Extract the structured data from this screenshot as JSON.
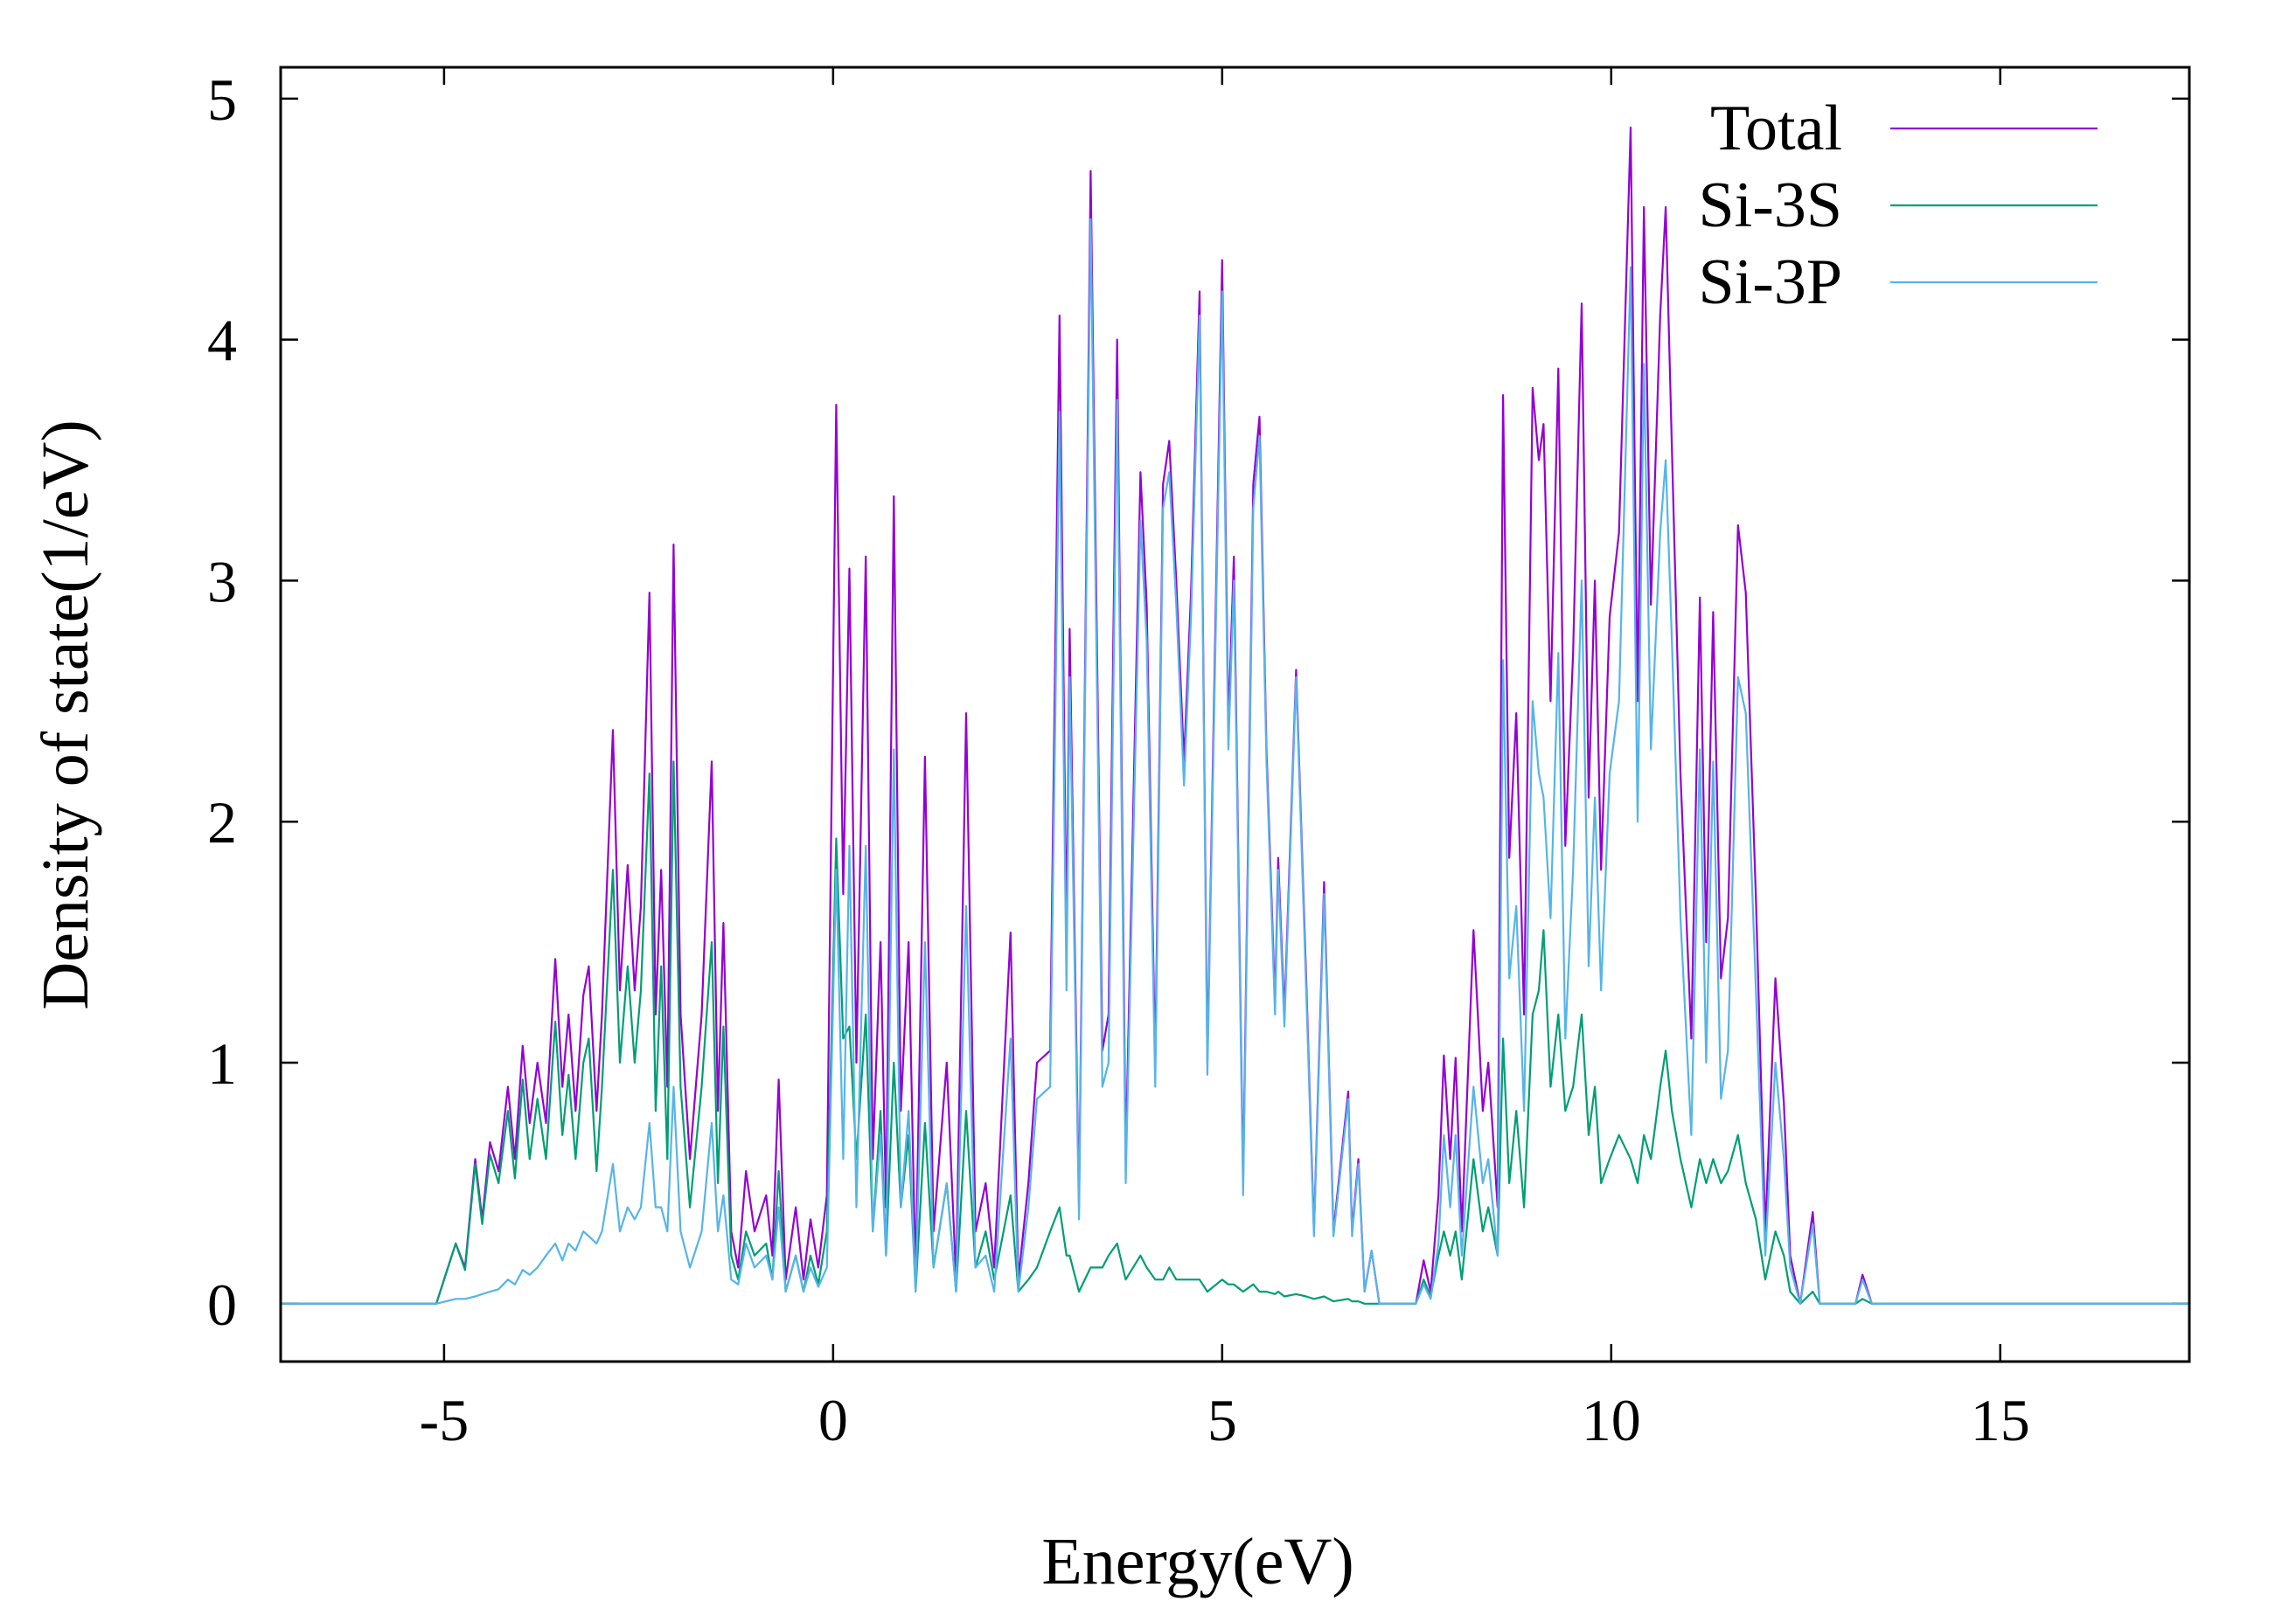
{
  "chart_data": {
    "type": "line",
    "xlabel": "Energy(eV)",
    "ylabel": "Density of state(1/eV)",
    "xlim": [
      -7.1,
      17.43
    ],
    "ylim": [
      -0.24,
      5.13
    ],
    "xticks": [
      -5,
      0,
      5,
      10,
      15
    ],
    "yticks": [
      0,
      1,
      2,
      3,
      4,
      5
    ],
    "legend": "top-right",
    "x": [
      -7.1,
      -5.1,
      -4.85,
      -4.73,
      -4.6,
      -4.51,
      -4.41,
      -4.3,
      -4.18,
      -4.09,
      -3.99,
      -3.9,
      -3.8,
      -3.69,
      -3.57,
      -3.48,
      -3.4,
      -3.31,
      -3.21,
      -3.14,
      -3.04,
      -2.97,
      -2.83,
      -2.74,
      -2.64,
      -2.55,
      -2.47,
      -2.36,
      -2.28,
      -2.21,
      -2.13,
      -2.05,
      -1.96,
      -1.84,
      -1.69,
      -1.56,
      -1.48,
      -1.41,
      -1.31,
      -1.22,
      -1.12,
      -1.01,
      -0.86,
      -0.78,
      -0.7,
      -0.61,
      -0.48,
      -0.38,
      -0.29,
      -0.19,
      -0.08,
      0.04,
      0.13,
      0.21,
      0.3,
      0.42,
      0.51,
      0.61,
      0.68,
      0.78,
      0.87,
      0.97,
      1.06,
      1.18,
      1.29,
      1.46,
      1.58,
      1.71,
      1.83,
      1.96,
      2.07,
      2.28,
      2.38,
      2.51,
      2.62,
      2.79,
      2.91,
      3.0,
      3.04,
      3.16,
      3.31,
      3.46,
      3.54,
      3.65,
      3.76,
      3.95,
      4.03,
      4.14,
      4.24,
      4.32,
      4.41,
      4.51,
      4.6,
      4.71,
      4.81,
      5.0,
      5.08,
      5.15,
      5.27,
      5.4,
      5.48,
      5.57,
      5.68,
      5.72,
      5.8,
      5.95,
      6.08,
      6.18,
      6.31,
      6.43,
      6.62,
      6.67,
      6.75,
      6.83,
      6.92,
      7.02,
      7.49,
      7.59,
      7.68,
      7.78,
      7.85,
      7.93,
      8.0,
      8.08,
      8.23,
      8.35,
      8.42,
      8.54,
      8.61,
      8.69,
      8.78,
      8.88,
      8.99,
      9.07,
      9.13,
      9.22,
      9.32,
      9.41,
      9.51,
      9.62,
      9.71,
      9.79,
      9.87,
      9.98,
      10.1,
      10.25,
      10.34,
      10.42,
      10.51,
      10.63,
      10.7,
      10.78,
      10.89,
      11.03,
      11.14,
      11.22,
      11.31,
      11.41,
      11.5,
      11.63,
      11.73,
      11.86,
      11.98,
      12.11,
      12.22,
      12.3,
      12.43,
      12.59,
      12.68,
      13.14,
      13.23,
      13.35,
      17.43
    ],
    "series": [
      {
        "name": "Total",
        "color": "#9400d3",
        "values": [
          0,
          0,
          0.25,
          0.15,
          0.6,
          0.35,
          0.67,
          0.55,
          0.9,
          0.6,
          1.07,
          0.75,
          1.0,
          0.75,
          1.43,
          0.9,
          1.2,
          0.8,
          1.28,
          1.4,
          0.8,
          1.2,
          2.38,
          1.3,
          1.82,
          1.3,
          1.65,
          2.95,
          1.2,
          1.8,
          0.9,
          3.15,
          1.2,
          0.6,
          1.2,
          2.25,
          0.8,
          1.58,
          0.3,
          0.15,
          0.55,
          0.3,
          0.45,
          0.2,
          0.93,
          0.1,
          0.4,
          0.1,
          0.35,
          0.15,
          0.45,
          3.73,
          1.7,
          3.05,
          1.0,
          3.1,
          0.6,
          1.5,
          0.4,
          3.35,
          0.8,
          1.5,
          0.1,
          2.27,
          0.3,
          1.0,
          0.1,
          2.45,
          0.3,
          0.5,
          0.15,
          1.54,
          0.1,
          0.5,
          1.0,
          1.05,
          4.1,
          1.5,
          2.8,
          0.4,
          4.7,
          1.05,
          1.2,
          4.0,
          0.6,
          3.45,
          2.9,
          1.0,
          3.4,
          3.58,
          3.0,
          2.25,
          2.95,
          4.2,
          1.0,
          4.33,
          2.4,
          3.1,
          0.5,
          3.4,
          3.68,
          2.3,
          1.25,
          1.85,
          1.2,
          2.63,
          1.35,
          0.3,
          1.75,
          0.3,
          0.88,
          0.3,
          0.6,
          0.05,
          0.22,
          0,
          0,
          0.18,
          0.05,
          0.45,
          1.03,
          0.6,
          1.02,
          0.3,
          1.55,
          0.8,
          1.0,
          0.4,
          3.77,
          1.85,
          2.45,
          1.2,
          3.8,
          3.5,
          3.65,
          2.5,
          3.88,
          1.9,
          2.7,
          4.15,
          2.1,
          3.0,
          1.8,
          2.85,
          3.2,
          4.88,
          2.5,
          4.55,
          2.9,
          4.1,
          4.55,
          3.55,
          2.2,
          1.1,
          2.93,
          1.5,
          2.87,
          1.35,
          1.6,
          3.23,
          2.95,
          1.68,
          0.3,
          1.35,
          0.83,
          0.2,
          0,
          0.38,
          0,
          0,
          0.12,
          0,
          0
        ]
      },
      {
        "name": "Si-3S",
        "color": "#009e73",
        "values": [
          0,
          0,
          0.25,
          0.14,
          0.58,
          0.33,
          0.62,
          0.5,
          0.8,
          0.52,
          0.93,
          0.6,
          0.85,
          0.6,
          1.17,
          0.7,
          0.95,
          0.6,
          1.0,
          1.1,
          0.55,
          0.9,
          1.8,
          1.0,
          1.4,
          1.0,
          1.3,
          2.2,
          0.8,
          1.4,
          0.6,
          2.25,
          0.9,
          0.4,
          0.9,
          1.5,
          0.5,
          1.15,
          0.2,
          0.1,
          0.3,
          0.2,
          0.25,
          0.1,
          0.55,
          0.05,
          0.2,
          0.05,
          0.2,
          0.08,
          0.3,
          1.93,
          1.1,
          1.15,
          0.6,
          1.2,
          0.3,
          0.8,
          0.2,
          1.0,
          0.4,
          0.7,
          0.05,
          0.75,
          0.15,
          0.5,
          0.05,
          0.8,
          0.15,
          0.3,
          0.1,
          0.45,
          0.05,
          0.1,
          0.15,
          0.3,
          0.4,
          0.2,
          0.2,
          0.05,
          0.15,
          0.15,
          0.2,
          0.25,
          0.1,
          0.2,
          0.15,
          0.1,
          0.1,
          0.15,
          0.1,
          0.1,
          0.1,
          0.1,
          0.05,
          0.1,
          0.08,
          0.08,
          0.05,
          0.08,
          0.05,
          0.05,
          0.04,
          0.05,
          0.03,
          0.04,
          0.03,
          0.02,
          0.03,
          0.01,
          0.02,
          0.01,
          0.01,
          0,
          0,
          0,
          0,
          0.1,
          0.03,
          0.2,
          0.3,
          0.2,
          0.3,
          0.1,
          0.6,
          0.3,
          0.4,
          0.2,
          1.1,
          0.5,
          0.8,
          0.4,
          1.2,
          1.3,
          1.55,
          0.9,
          1.2,
          0.8,
          0.9,
          1.2,
          0.7,
          0.9,
          0.5,
          0.6,
          0.7,
          0.6,
          0.5,
          0.7,
          0.6,
          0.9,
          1.05,
          0.8,
          0.6,
          0.4,
          0.6,
          0.5,
          0.6,
          0.5,
          0.55,
          0.7,
          0.5,
          0.35,
          0.1,
          0.3,
          0.2,
          0.05,
          0,
          0.05,
          0,
          0,
          0.02,
          0,
          0
        ]
      },
      {
        "name": "Si-3P",
        "color": "#56b4e9",
        "values": [
          0,
          0,
          0.02,
          0.02,
          0.03,
          0.04,
          0.05,
          0.06,
          0.1,
          0.08,
          0.14,
          0.12,
          0.15,
          0.2,
          0.25,
          0.18,
          0.25,
          0.22,
          0.3,
          0.28,
          0.25,
          0.3,
          0.58,
          0.3,
          0.4,
          0.35,
          0.4,
          0.75,
          0.4,
          0.4,
          0.3,
          0.9,
          0.3,
          0.15,
          0.3,
          0.75,
          0.3,
          0.45,
          0.1,
          0.08,
          0.25,
          0.15,
          0.2,
          0.1,
          0.4,
          0.05,
          0.2,
          0.05,
          0.15,
          0.07,
          0.15,
          1.8,
          0.6,
          1.9,
          0.4,
          1.9,
          0.3,
          0.7,
          0.2,
          2.3,
          0.4,
          0.8,
          0.05,
          1.5,
          0.15,
          0.5,
          0.05,
          1.65,
          0.15,
          0.2,
          0.05,
          1.1,
          0.05,
          0.4,
          0.85,
          0.9,
          3.7,
          1.3,
          2.6,
          0.35,
          4.5,
          0.9,
          1.0,
          3.75,
          0.5,
          3.25,
          2.75,
          0.9,
          3.3,
          3.45,
          2.9,
          2.15,
          2.85,
          4.1,
          0.95,
          4.2,
          2.3,
          3.0,
          0.45,
          3.3,
          3.6,
          2.25,
          1.2,
          1.8,
          1.15,
          2.6,
          1.3,
          0.28,
          1.7,
          0.28,
          0.85,
          0.28,
          0.58,
          0.05,
          0.22,
          0,
          0,
          0.08,
          0.02,
          0.25,
          0.7,
          0.4,
          0.7,
          0.2,
          0.9,
          0.5,
          0.6,
          0.2,
          2.67,
          1.35,
          1.65,
          0.8,
          2.5,
          2.2,
          2.1,
          1.6,
          2.7,
          1.1,
          1.8,
          3.0,
          1.4,
          2.1,
          1.3,
          2.2,
          2.5,
          4.3,
          2.0,
          3.9,
          2.3,
          3.2,
          3.5,
          2.75,
          1.6,
          0.7,
          2.3,
          1.0,
          2.25,
          0.85,
          1.05,
          2.6,
          2.45,
          1.3,
          0.2,
          1.0,
          0.6,
          0.15,
          0,
          0.33,
          0,
          0,
          0.1,
          0,
          0
        ]
      }
    ]
  }
}
